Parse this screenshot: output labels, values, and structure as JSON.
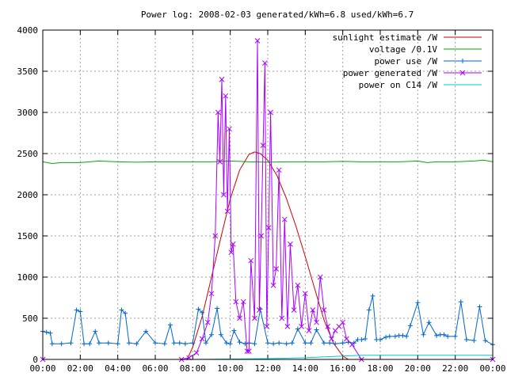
{
  "chart_data": {
    "type": "line",
    "title": "Power log: 2008-02-03 generated/kWh=6.8 used/kWh=6.7",
    "xlabel": "",
    "ylabel": "",
    "xlim": [
      0,
      24
    ],
    "ylim": [
      0,
      4000
    ],
    "grid": true,
    "legend_position": "top-right",
    "x_ticks": [
      "00:00",
      "02:00",
      "04:00",
      "06:00",
      "08:00",
      "10:00",
      "12:00",
      "14:00",
      "16:00",
      "18:00",
      "20:00",
      "22:00",
      "00:00"
    ],
    "y_ticks": [
      "0",
      "500",
      "1000",
      "1500",
      "2000",
      "2500",
      "3000",
      "3500",
      "4000"
    ],
    "series": [
      {
        "name": "sunlight estimate /W",
        "color": "#cc0000",
        "marker": "none",
        "x": [
          0,
          7.7,
          8.0,
          8.5,
          9.0,
          9.5,
          10.0,
          10.5,
          11.0,
          11.3,
          11.6,
          12.0,
          12.5,
          13.0,
          13.5,
          14.0,
          14.5,
          15.0,
          15.5,
          16.0,
          16.3,
          24
        ],
        "y": [
          0,
          0,
          150,
          520,
          1000,
          1480,
          1950,
          2300,
          2490,
          2520,
          2500,
          2420,
          2230,
          1950,
          1620,
          1250,
          860,
          480,
          200,
          40,
          0,
          0
        ]
      },
      {
        "name": "voltage /0.1V",
        "color": "#00aa00",
        "marker": "none",
        "x": [
          0,
          0.5,
          1,
          2,
          3,
          4,
          5,
          6,
          7,
          8,
          9,
          10,
          11,
          12,
          13,
          14,
          15,
          16,
          17,
          18,
          19,
          20,
          20.5,
          21,
          22,
          23,
          23.5,
          24
        ],
        "y": [
          2400,
          2380,
          2390,
          2390,
          2410,
          2400,
          2395,
          2400,
          2400,
          2400,
          2400,
          2410,
          2400,
          2395,
          2400,
          2400,
          2400,
          2405,
          2400,
          2400,
          2400,
          2410,
          2390,
          2400,
          2400,
          2410,
          2420,
          2400
        ]
      },
      {
        "name": "power use /W",
        "color": "#0066cc",
        "marker": "+",
        "x": [
          0,
          0.2,
          0.4,
          0.5,
          1.0,
          1.5,
          1.8,
          2.0,
          2.2,
          2.5,
          2.8,
          3.0,
          3.5,
          4.0,
          4.2,
          4.4,
          4.6,
          5.0,
          5.5,
          6.0,
          6.5,
          6.8,
          7.0,
          7.3,
          7.6,
          8.0,
          8.3,
          8.5,
          8.7,
          9.0,
          9.3,
          9.5,
          9.8,
          10.0,
          10.2,
          10.5,
          10.8,
          11.0,
          11.3,
          11.6,
          12.0,
          12.3,
          12.6,
          13.0,
          13.3,
          13.6,
          14.0,
          14.3,
          14.6,
          15.0,
          15.3,
          15.6,
          16.0,
          16.3,
          16.6,
          16.8,
          17.0,
          17.2,
          17.4,
          17.6,
          17.8,
          18.0,
          18.3,
          18.5,
          18.8,
          19.0,
          19.2,
          19.4,
          19.6,
          20.0,
          20.3,
          20.6,
          21.0,
          21.2,
          21.4,
          21.6,
          22.0,
          22.3,
          22.6,
          23.0,
          23.3,
          23.6,
          24.0
        ],
        "y": [
          340,
          330,
          320,
          190,
          190,
          200,
          600,
          580,
          190,
          190,
          340,
          200,
          200,
          190,
          600,
          560,
          200,
          190,
          340,
          200,
          190,
          420,
          200,
          200,
          190,
          200,
          610,
          570,
          200,
          300,
          620,
          300,
          200,
          190,
          350,
          210,
          190,
          200,
          190,
          610,
          200,
          190,
          200,
          190,
          200,
          370,
          200,
          200,
          360,
          200,
          200,
          190,
          200,
          210,
          200,
          240,
          240,
          250,
          600,
          770,
          240,
          240,
          270,
          280,
          280,
          290,
          290,
          280,
          410,
          690,
          300,
          450,
          290,
          300,
          300,
          280,
          280,
          700,
          240,
          230,
          640,
          230,
          180
        ]
      },
      {
        "name": "power generated /W",
        "color": "#aa00ff",
        "marker": "x",
        "x": [
          0,
          7.4,
          7.8,
          8.2,
          8.5,
          8.8,
          9.0,
          9.2,
          9.35,
          9.45,
          9.55,
          9.65,
          9.75,
          9.85,
          9.95,
          10.05,
          10.15,
          10.3,
          10.5,
          10.7,
          10.9,
          11.0,
          11.1,
          11.3,
          11.45,
          11.55,
          11.65,
          11.75,
          11.85,
          11.95,
          12.05,
          12.15,
          12.3,
          12.45,
          12.6,
          12.75,
          12.9,
          13.05,
          13.2,
          13.4,
          13.6,
          13.8,
          14.0,
          14.2,
          14.4,
          14.6,
          14.8,
          15.0,
          15.2,
          15.4,
          15.6,
          15.8,
          16.0,
          16.2,
          16.5,
          17.0,
          24
        ],
        "y": [
          0,
          0,
          20,
          80,
          250,
          450,
          800,
          1500,
          3000,
          2400,
          3400,
          2000,
          3200,
          1800,
          2800,
          1300,
          1400,
          700,
          500,
          700,
          100,
          100,
          1200,
          500,
          3870,
          600,
          1500,
          2600,
          3600,
          400,
          1600,
          3000,
          900,
          1100,
          2300,
          500,
          1700,
          400,
          1400,
          600,
          900,
          400,
          800,
          350,
          600,
          450,
          1000,
          600,
          400,
          250,
          350,
          400,
          450,
          250,
          180,
          0,
          0
        ]
      },
      {
        "name": "power on C14 /W",
        "color": "#00cccc",
        "marker": "none",
        "x": [
          0,
          8,
          10,
          12,
          14,
          16,
          17,
          18,
          20,
          22,
          24
        ],
        "y": [
          0,
          0,
          5,
          10,
          20,
          40,
          50,
          50,
          50,
          50,
          50
        ]
      }
    ]
  }
}
